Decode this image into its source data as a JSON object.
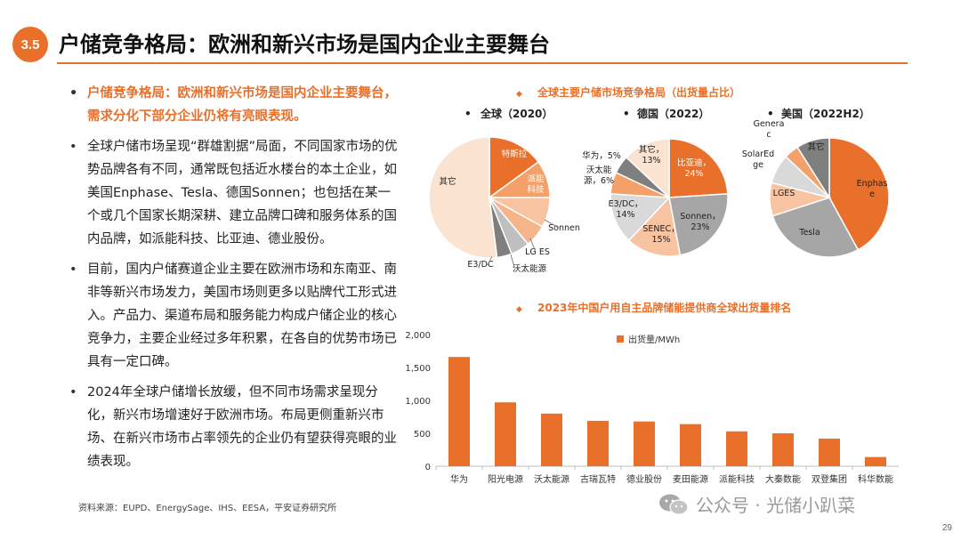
{
  "header": {
    "section_number": "3.5",
    "title": "户储竞争格局：欧洲和新兴市场是国内企业主要舞台"
  },
  "bullets": [
    "户储竞争格局：欧洲和新兴市场是国内企业主要舞台，需求分化下部分企业仍将有亮眼表现。",
    "全球户储市场呈现“群雄割据”局面，不同国家市场的优势品牌各有不同，通常既包括近水楼台的本土企业，如美国Enphase、Tesla、德国Sonnen；也包括在某一个或几个国家长期深耕、建立品牌口碑和服务体系的国内品牌，如派能科技、比亚迪、德业股份。",
    "目前，国内户储赛道企业主要在欧洲市场和东南亚、南非等新兴市场发力，美国市场则更多以贴牌代工形式进入。产品力、渠道布局和服务能力构成户储企业的核心竞争力，主要企业经过多年积累，在各自的优势市场已具有一定口碑。",
    "2024年全球户储增长放缓，但不同市场需求呈现分化，新兴市场增速好于欧洲市场。布局更侧重新兴市场、在新兴市场市占率领先的企业仍有望获得亮眼的业绩表现。"
  ],
  "source": "资料来源：EUPD、EnergySage、IHS、EESA，平安证券研究所",
  "page_number": "29",
  "watermark": "公众号 · 光储小趴菜",
  "colors": {
    "accent": "#e8702a",
    "light1": "#f8c3a0",
    "light2": "#fbe3d2",
    "gray_dark": "#7f7f7f",
    "gray_mid": "#a6a6a6",
    "gray_light": "#d9d9d9"
  },
  "chart_data": [
    {
      "type": "pie",
      "title": "全球主要户储市场竞争格局（出货量占比）",
      "subtitle": "全球（2020）",
      "slices": [
        {
          "label": "特斯拉",
          "value": 15,
          "color": "#e8702a"
        },
        {
          "label": "派能科技",
          "value": 10,
          "color": "#f4a06a"
        },
        {
          "label": "Sonnen",
          "value": 8,
          "color": "#f8c3a0"
        },
        {
          "label": "LG ES",
          "value": 6,
          "color": "#f5b48a"
        },
        {
          "label": "沃太能源",
          "value": 5,
          "color": "#bfbfbf"
        },
        {
          "label": "E3/DC",
          "value": 4,
          "color": "#7f7f7f"
        },
        {
          "label": "其它",
          "value": 52,
          "color": "#fbe3d2"
        }
      ]
    },
    {
      "type": "pie",
      "subtitle": "德国（2022）",
      "slices": [
        {
          "label": "比亚迪，24%",
          "value": 24,
          "color": "#e8702a"
        },
        {
          "label": "Sonnen，23%",
          "value": 23,
          "color": "#a6a6a6"
        },
        {
          "label": "SENEC，15%",
          "value": 15,
          "color": "#f8c3a0"
        },
        {
          "label": "E3/DC，14%",
          "value": 14,
          "color": "#d9d9d9"
        },
        {
          "label": "沃太能源，6%",
          "value": 6,
          "color": "#f4a06a"
        },
        {
          "label": "华为，5%",
          "value": 5,
          "color": "#7f7f7f"
        },
        {
          "label": "其它，13%",
          "value": 13,
          "color": "#fbe3d2"
        }
      ]
    },
    {
      "type": "pie",
      "subtitle": "美国（2022H2）",
      "slices": [
        {
          "label": "Enphase",
          "value": 42,
          "color": "#e8702a"
        },
        {
          "label": "Tesla",
          "value": 28,
          "color": "#a6a6a6"
        },
        {
          "label": "LGES",
          "value": 9,
          "color": "#f8c3a0"
        },
        {
          "label": "SolarEdge",
          "value": 8,
          "color": "#d9d9d9"
        },
        {
          "label": "Generac",
          "value": 4,
          "color": "#f4a06a"
        },
        {
          "label": "其它",
          "value": 9,
          "color": "#7f7f7f"
        }
      ]
    },
    {
      "type": "bar",
      "title": "2023年中国户用自主品牌储能提供商全球出货量排名",
      "series_name": "出货量/MWh",
      "categories": [
        "华为",
        "阳光电源",
        "沃太能源",
        "古瑞瓦特",
        "德业股份",
        "麦田能源",
        "派能科技",
        "大秦数能",
        "双登集团",
        "科华数能"
      ],
      "values": [
        1660,
        970,
        800,
        690,
        680,
        640,
        530,
        500,
        420,
        140
      ],
      "ylim": [
        0,
        2000
      ],
      "yticks": [
        "0",
        "500",
        "1,000",
        "1,500",
        "2,000"
      ]
    }
  ]
}
